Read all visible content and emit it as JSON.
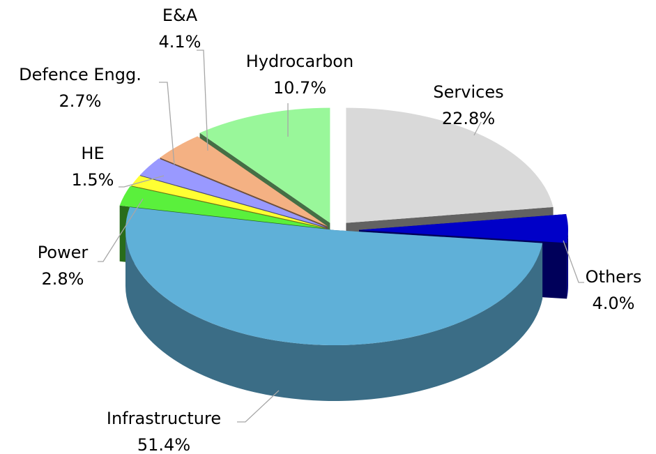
{
  "chart_data": {
    "type": "pie",
    "categories": [
      "Services",
      "Others",
      "Infrastructure",
      "Power",
      "HE",
      "Defence Engg.",
      "E&A",
      "Hydrocarbon"
    ],
    "values": [
      22.8,
      4.0,
      51.4,
      2.8,
      1.5,
      2.7,
      4.1,
      10.7
    ],
    "value_labels": [
      "22.8%",
      "4.0%",
      "51.4%",
      "2.8%",
      "1.5%",
      "2.7%",
      "4.1%",
      "10.7%"
    ],
    "colors": [
      "#d9d9d9",
      "#0000c8",
      "#5fb0d8",
      "#5af03c",
      "#ffff33",
      "#9999ff",
      "#f4b183",
      "#99f79a"
    ]
  }
}
